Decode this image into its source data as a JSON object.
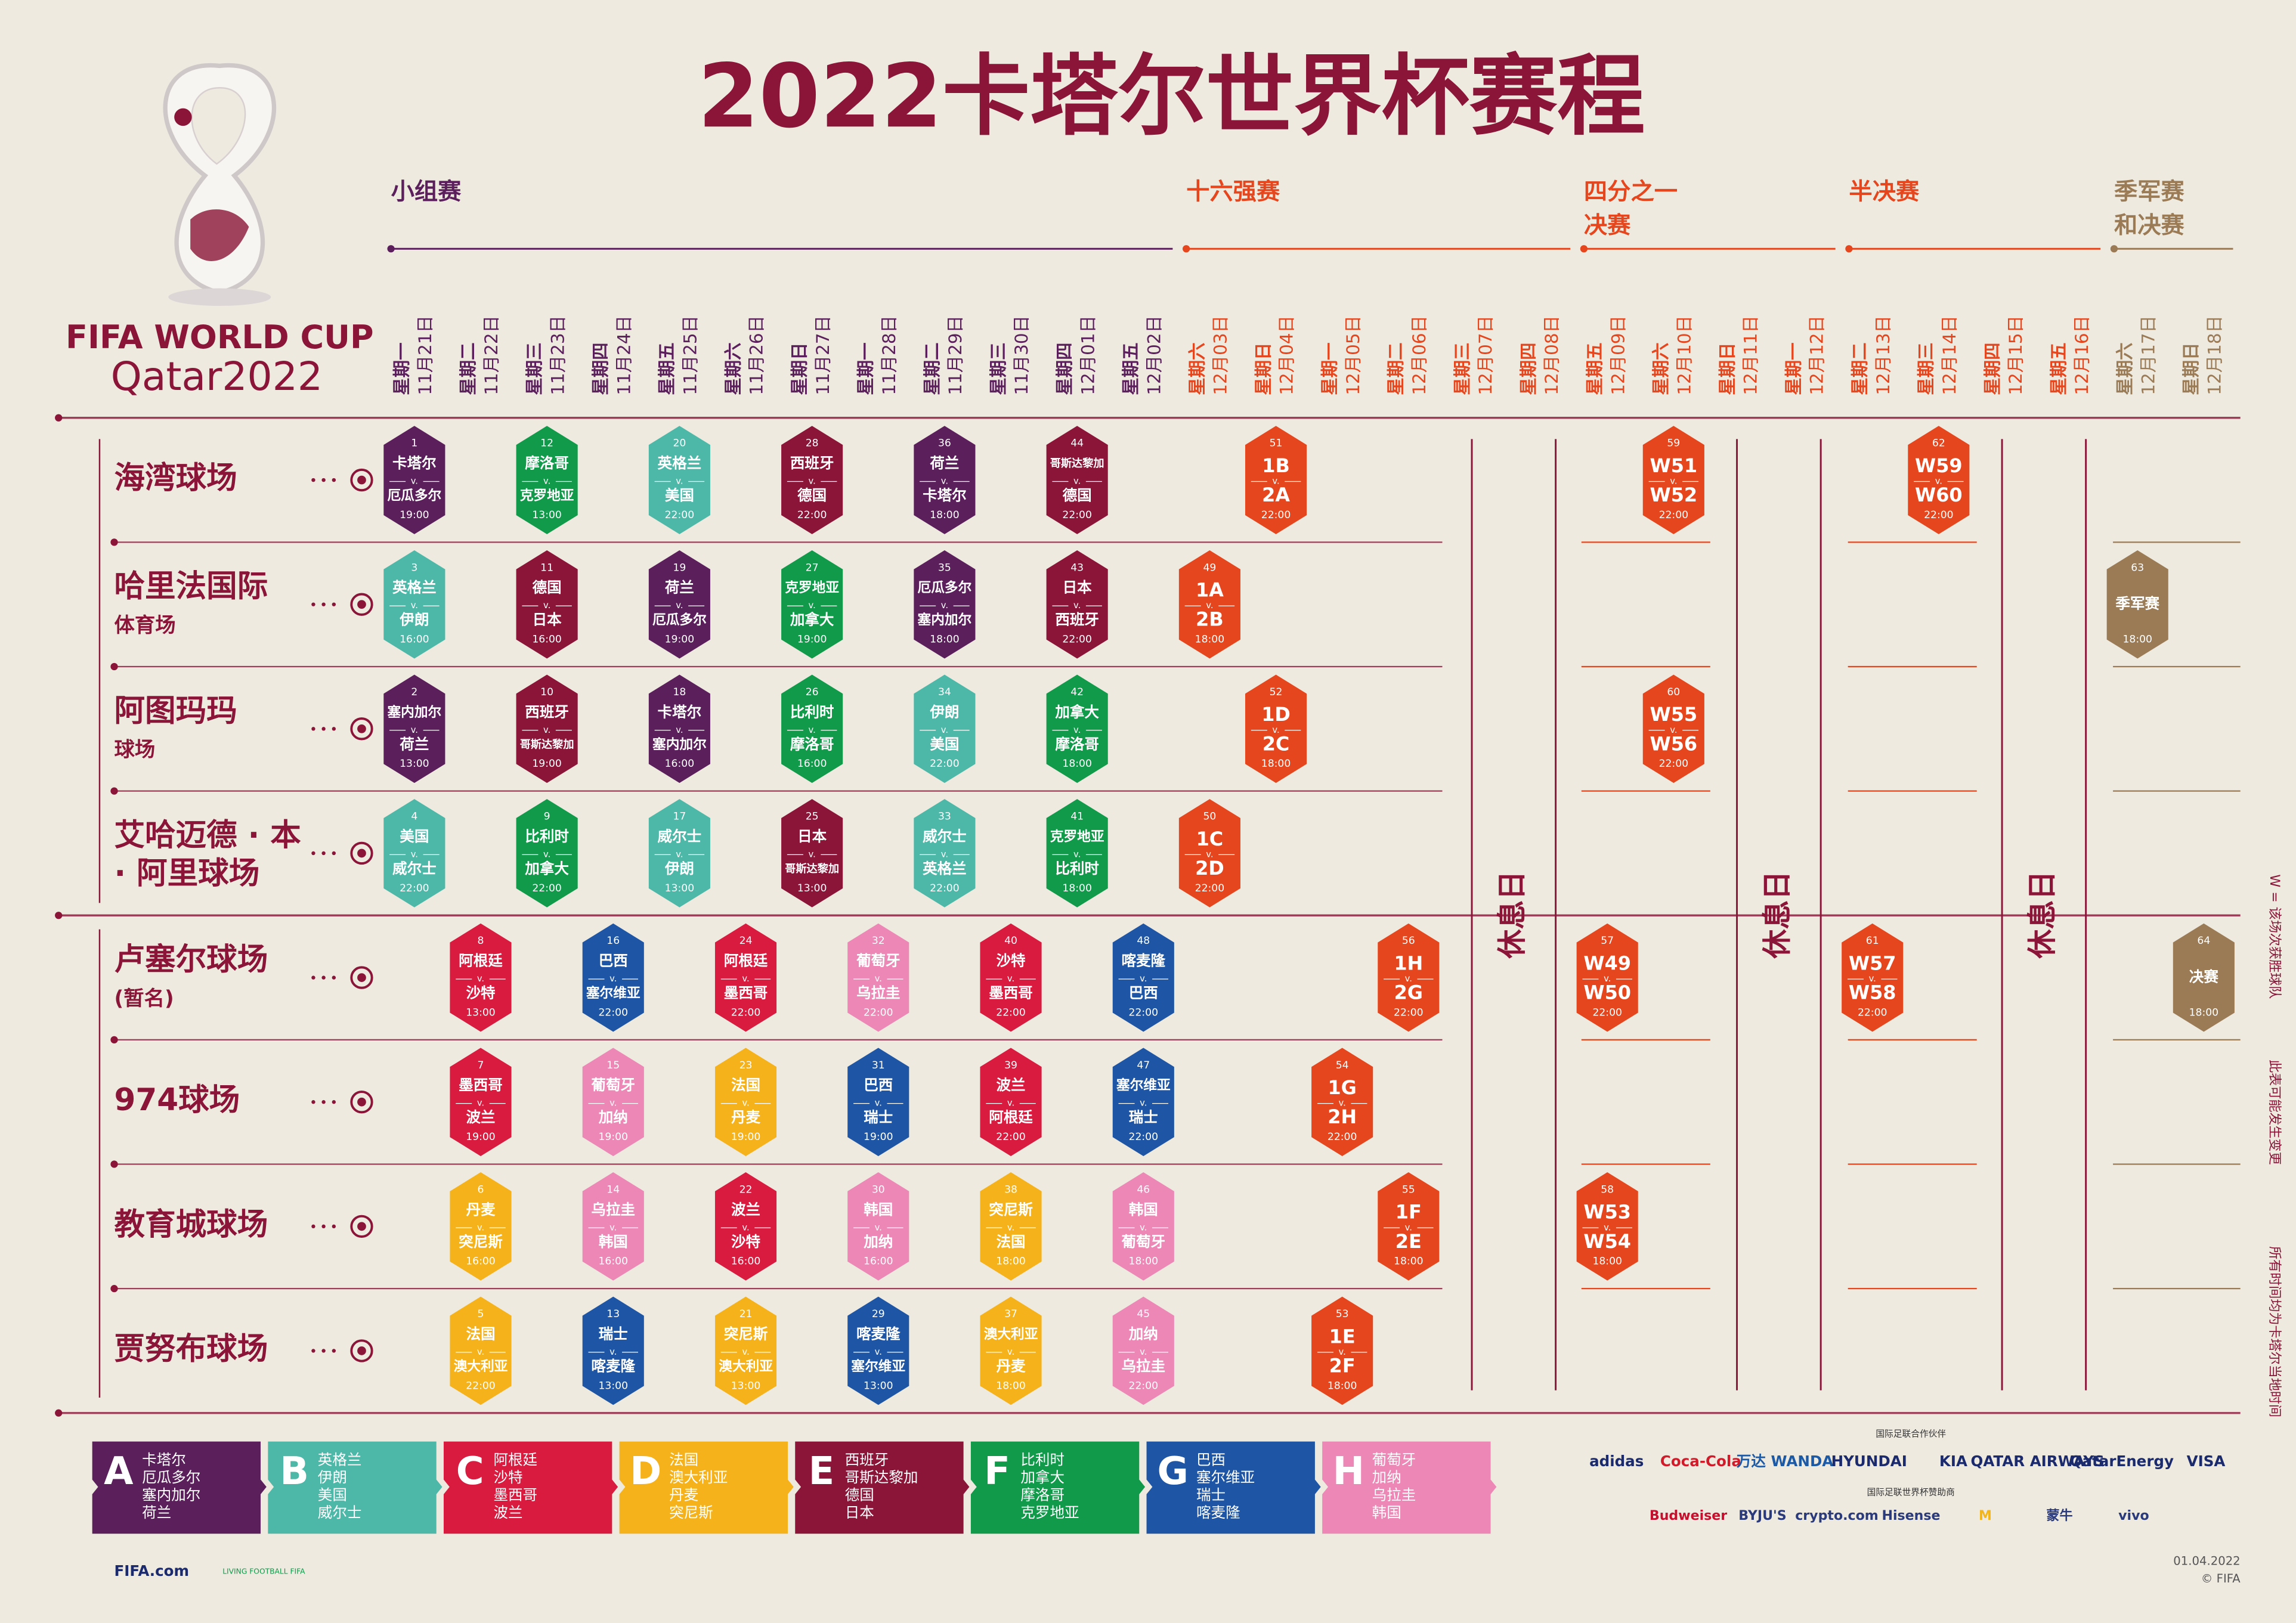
{
  "title": "2022卡塔尔世界杯赛程",
  "logo": {
    "line1": "FIFA WORLD CUP",
    "line2": "Qatar2022"
  },
  "versus": "v.",
  "rest_label": "休息日",
  "stages": [
    {
      "name": [
        "小组赛"
      ],
      "color": "#5b1f5c",
      "dates": [
        {
          "weekday": "星期一",
          "date": "11月21日"
        },
        {
          "weekday": "星期二",
          "date": "11月22日"
        },
        {
          "weekday": "星期三",
          "date": "11月23日"
        },
        {
          "weekday": "星期四",
          "date": "11月24日"
        },
        {
          "weekday": "星期五",
          "date": "11月25日"
        },
        {
          "weekday": "星期六",
          "date": "11月26日"
        },
        {
          "weekday": "星期日",
          "date": "11月27日"
        },
        {
          "weekday": "星期一",
          "date": "11月28日"
        },
        {
          "weekday": "星期二",
          "date": "11月29日"
        },
        {
          "weekday": "星期三",
          "date": "11月30日"
        },
        {
          "weekday": "星期四",
          "date": "12月01日"
        },
        {
          "weekday": "星期五",
          "date": "12月02日"
        }
      ]
    },
    {
      "name": [
        "十六强赛"
      ],
      "color": "#e6461d",
      "dates": [
        {
          "weekday": "星期六",
          "date": "12月03日"
        },
        {
          "weekday": "星期日",
          "date": "12月04日"
        },
        {
          "weekday": "星期一",
          "date": "12月05日"
        },
        {
          "weekday": "星期二",
          "date": "12月06日"
        },
        {
          "weekday": "星期三",
          "date": "12月07日"
        },
        {
          "weekday": "星期四",
          "date": "12月08日"
        }
      ]
    },
    {
      "name": [
        "四分之一",
        "决赛"
      ],
      "color": "#e6461d",
      "dates": [
        {
          "weekday": "星期五",
          "date": "12月09日"
        },
        {
          "weekday": "星期六",
          "date": "12月10日"
        },
        {
          "weekday": "星期日",
          "date": "12月11日"
        },
        {
          "weekday": "星期一",
          "date": "12月12日"
        }
      ]
    },
    {
      "name": [
        "半决赛"
      ],
      "color": "#e6461d",
      "dates": [
        {
          "weekday": "星期二",
          "date": "12月13日"
        },
        {
          "weekday": "星期三",
          "date": "12月14日"
        },
        {
          "weekday": "星期四",
          "date": "12月15日"
        },
        {
          "weekday": "星期五",
          "date": "12月16日"
        }
      ]
    },
    {
      "name": [
        "季军赛",
        "和决赛"
      ],
      "color": "#9b7b55",
      "dates": [
        {
          "weekday": "星期六",
          "date": "12月17日"
        },
        {
          "weekday": "星期日",
          "date": "12月18日"
        }
      ]
    }
  ],
  "stadiums": [
    {
      "name": [
        "海湾球场"
      ],
      "schedule": [
        {
          "no": 1,
          "home": "卡塔尔",
          "away": "厄瓜多尔",
          "time": "19:00",
          "color": "#5b1f5c"
        },
        null,
        {
          "no": 12,
          "home": "摩洛哥",
          "away": "克罗地亚",
          "time": "13:00",
          "color": "#109a4a"
        },
        null,
        {
          "no": 20,
          "home": "英格兰",
          "away": "美国",
          "time": "22:00",
          "color": "#4db8a8"
        },
        null,
        {
          "no": 28,
          "home": "西班牙",
          "away": "德国",
          "time": "22:00",
          "color": "#8b1538"
        },
        null,
        {
          "no": 36,
          "home": "荷兰",
          "away": "卡塔尔",
          "time": "18:00",
          "color": "#5b1f5c"
        },
        null,
        {
          "no": 44,
          "home": "哥斯达黎加",
          "away": "德国",
          "time": "22:00",
          "color": "#8b1538"
        },
        null,
        null,
        {
          "no": 51,
          "home": "1B",
          "away": "2A",
          "time": "22:00",
          "color": "#e6461d"
        },
        null,
        null,
        null,
        null,
        null,
        {
          "no": 59,
          "home": "W51",
          "away": "W52",
          "time": "22:00",
          "color": "#e6461d"
        },
        null,
        null,
        null,
        {
          "no": 62,
          "home": "W59",
          "away": "W60",
          "time": "22:00",
          "color": "#e6461d"
        },
        null,
        null,
        null,
        null
      ]
    },
    {
      "name": [
        "哈里法国际",
        "体育场"
      ],
      "schedule": [
        {
          "no": 3,
          "home": "英格兰",
          "away": "伊朗",
          "time": "16:00",
          "color": "#4db8a8"
        },
        null,
        {
          "no": 11,
          "home": "德国",
          "away": "日本",
          "time": "16:00",
          "color": "#8b1538"
        },
        null,
        {
          "no": 19,
          "home": "荷兰",
          "away": "厄瓜多尔",
          "time": "19:00",
          "color": "#5b1f5c"
        },
        null,
        {
          "no": 27,
          "home": "克罗地亚",
          "away": "加拿大",
          "time": "19:00",
          "color": "#109a4a"
        },
        null,
        {
          "no": 35,
          "home": "厄瓜多尔",
          "away": "塞内加尔",
          "time": "18:00",
          "color": "#5b1f5c"
        },
        null,
        {
          "no": 43,
          "home": "日本",
          "away": "西班牙",
          "time": "22:00",
          "color": "#8b1538"
        },
        null,
        {
          "no": 49,
          "home": "1A",
          "away": "2B",
          "time": "18:00",
          "color": "#e6461d"
        },
        null,
        null,
        null,
        null,
        null,
        null,
        null,
        null,
        null,
        null,
        null,
        null,
        null,
        {
          "no": 63,
          "name": "季军赛",
          "time": "18:00",
          "color": "#9b7b55"
        },
        null
      ]
    },
    {
      "name": [
        "阿图玛玛",
        "球场"
      ],
      "schedule": [
        {
          "no": 2,
          "home": "塞内加尔",
          "away": "荷兰",
          "time": "13:00",
          "color": "#5b1f5c"
        },
        null,
        {
          "no": 10,
          "home": "西班牙",
          "away": "哥斯达黎加",
          "time": "19:00",
          "color": "#8b1538"
        },
        null,
        {
          "no": 18,
          "home": "卡塔尔",
          "away": "塞内加尔",
          "time": "16:00",
          "color": "#5b1f5c"
        },
        null,
        {
          "no": 26,
          "home": "比利时",
          "away": "摩洛哥",
          "time": "16:00",
          "color": "#109a4a"
        },
        null,
        {
          "no": 34,
          "home": "伊朗",
          "away": "美国",
          "time": "22:00",
          "color": "#4db8a8"
        },
        null,
        {
          "no": 42,
          "home": "加拿大",
          "away": "摩洛哥",
          "time": "18:00",
          "color": "#109a4a"
        },
        null,
        null,
        {
          "no": 52,
          "home": "1D",
          "away": "2C",
          "time": "18:00",
          "color": "#e6461d"
        },
        null,
        null,
        null,
        null,
        null,
        {
          "no": 60,
          "home": "W55",
          "away": "W56",
          "time": "22:00",
          "color": "#e6461d"
        },
        null,
        null,
        null,
        null,
        null,
        null,
        null,
        null
      ]
    },
    {
      "name": [
        "艾哈迈德 · 本",
        "· 阿里球场"
      ],
      "schedule": [
        {
          "no": 4,
          "home": "美国",
          "away": "威尔士",
          "time": "22:00",
          "color": "#4db8a8"
        },
        null,
        {
          "no": 9,
          "home": "比利时",
          "away": "加拿大",
          "time": "22:00",
          "color": "#109a4a"
        },
        null,
        {
          "no": 17,
          "home": "威尔士",
          "away": "伊朗",
          "time": "13:00",
          "color": "#4db8a8"
        },
        null,
        {
          "no": 25,
          "home": "日本",
          "away": "哥斯达黎加",
          "time": "13:00",
          "color": "#8b1538"
        },
        null,
        {
          "no": 33,
          "home": "威尔士",
          "away": "英格兰",
          "time": "22:00",
          "color": "#4db8a8"
        },
        null,
        {
          "no": 41,
          "home": "克罗地亚",
          "away": "比利时",
          "time": "18:00",
          "color": "#109a4a"
        },
        null,
        {
          "no": 50,
          "home": "1C",
          "away": "2D",
          "time": "22:00",
          "color": "#e6461d"
        },
        null,
        null,
        null,
        null,
        null,
        null,
        null,
        null,
        null,
        null,
        null,
        null,
        null,
        null,
        null
      ]
    },
    {
      "name": [
        "卢塞尔球场",
        "(暂名)"
      ],
      "schedule": [
        null,
        {
          "no": 8,
          "home": "阿根廷",
          "away": "沙特",
          "time": "13:00",
          "color": "#d81b3f"
        },
        null,
        {
          "no": 16,
          "home": "巴西",
          "away": "塞尔维亚",
          "time": "22:00",
          "color": "#1e56a5"
        },
        null,
        {
          "no": 24,
          "home": "阿根廷",
          "away": "墨西哥",
          "time": "22:00",
          "color": "#d81b3f"
        },
        null,
        {
          "no": 32,
          "home": "葡萄牙",
          "away": "乌拉圭",
          "time": "22:00",
          "color": "#ec87b6"
        },
        null,
        {
          "no": 40,
          "home": "沙特",
          "away": "墨西哥",
          "time": "22:00",
          "color": "#d81b3f"
        },
        null,
        {
          "no": 48,
          "home": "喀麦隆",
          "away": "巴西",
          "time": "22:00",
          "color": "#1e56a5"
        },
        null,
        null,
        null,
        {
          "no": 56,
          "home": "1H",
          "away": "2G",
          "time": "22:00",
          "color": "#e6461d"
        },
        null,
        null,
        {
          "no": 57,
          "home": "W49",
          "away": "W50",
          "time": "22:00",
          "color": "#e6461d"
        },
        null,
        null,
        null,
        {
          "no": 61,
          "home": "W57",
          "away": "W58",
          "time": "22:00",
          "color": "#e6461d"
        },
        null,
        null,
        null,
        null,
        {
          "no": 64,
          "name": "决赛",
          "time": "18:00",
          "color": "#9b7b55"
        }
      ]
    },
    {
      "name": [
        "974球场"
      ],
      "schedule": [
        null,
        {
          "no": 7,
          "home": "墨西哥",
          "away": "波兰",
          "time": "19:00",
          "color": "#d81b3f"
        },
        null,
        {
          "no": 15,
          "home": "葡萄牙",
          "away": "加纳",
          "time": "19:00",
          "color": "#ec87b6"
        },
        null,
        {
          "no": 23,
          "home": "法国",
          "away": "丹麦",
          "time": "19:00",
          "color": "#f5b21b"
        },
        null,
        {
          "no": 31,
          "home": "巴西",
          "away": "瑞士",
          "time": "19:00",
          "color": "#1e56a5"
        },
        null,
        {
          "no": 39,
          "home": "波兰",
          "away": "阿根廷",
          "time": "22:00",
          "color": "#d81b3f"
        },
        null,
        {
          "no": 47,
          "home": "塞尔维亚",
          "away": "瑞士",
          "time": "22:00",
          "color": "#1e56a5"
        },
        null,
        null,
        {
          "no": 54,
          "home": "1G",
          "away": "2H",
          "time": "22:00",
          "color": "#e6461d"
        },
        null,
        null,
        null,
        null,
        null,
        null,
        null,
        null,
        null,
        null,
        null,
        null,
        null
      ]
    },
    {
      "name": [
        "教育城球场"
      ],
      "schedule": [
        null,
        {
          "no": 6,
          "home": "丹麦",
          "away": "突尼斯",
          "time": "16:00",
          "color": "#f5b21b"
        },
        null,
        {
          "no": 14,
          "home": "乌拉圭",
          "away": "韩国",
          "time": "16:00",
          "color": "#ec87b6"
        },
        null,
        {
          "no": 22,
          "home": "波兰",
          "away": "沙特",
          "time": "16:00",
          "color": "#d81b3f"
        },
        null,
        {
          "no": 30,
          "home": "韩国",
          "away": "加纳",
          "time": "16:00",
          "color": "#ec87b6"
        },
        null,
        {
          "no": 38,
          "home": "突尼斯",
          "away": "法国",
          "time": "18:00",
          "color": "#f5b21b"
        },
        null,
        {
          "no": 46,
          "home": "韩国",
          "away": "葡萄牙",
          "time": "18:00",
          "color": "#ec87b6"
        },
        null,
        null,
        null,
        {
          "no": 55,
          "home": "1F",
          "away": "2E",
          "time": "18:00",
          "color": "#e6461d"
        },
        null,
        null,
        {
          "no": 58,
          "home": "W53",
          "away": "W54",
          "time": "18:00",
          "color": "#e6461d"
        },
        null,
        null,
        null,
        null,
        null,
        null,
        null,
        null,
        null
      ]
    },
    {
      "name": [
        "贾努布球场"
      ],
      "schedule": [
        null,
        {
          "no": 5,
          "home": "法国",
          "away": "澳大利亚",
          "time": "22:00",
          "color": "#f5b21b"
        },
        null,
        {
          "no": 13,
          "home": "瑞士",
          "away": "喀麦隆",
          "time": "13:00",
          "color": "#1e56a5"
        },
        null,
        {
          "no": 21,
          "home": "突尼斯",
          "away": "澳大利亚",
          "time": "13:00",
          "color": "#f5b21b"
        },
        null,
        {
          "no": 29,
          "home": "喀麦隆",
          "away": "塞尔维亚",
          "time": "13:00",
          "color": "#1e56a5"
        },
        null,
        {
          "no": 37,
          "home": "澳大利亚",
          "away": "丹麦",
          "time": "18:00",
          "color": "#f5b21b"
        },
        null,
        {
          "no": 45,
          "home": "加纳",
          "away": "乌拉圭",
          "time": "22:00",
          "color": "#ec87b6"
        },
        null,
        null,
        {
          "no": 53,
          "home": "1E",
          "away": "2F",
          "time": "18:00",
          "color": "#e6461d"
        },
        null,
        null,
        null,
        null,
        null,
        null,
        null,
        null,
        null,
        null,
        null,
        null,
        null
      ]
    }
  ],
  "groups": [
    {
      "letter": "A",
      "color": "#5b1f5c",
      "teams": [
        "卡塔尔",
        "厄瓜多尔",
        "塞内加尔",
        "荷兰"
      ]
    },
    {
      "letter": "B",
      "color": "#4db8a8",
      "teams": [
        "英格兰",
        "伊朗",
        "美国",
        "威尔士"
      ]
    },
    {
      "letter": "C",
      "color": "#d81b3f",
      "teams": [
        "阿根廷",
        "沙特",
        "墨西哥",
        "波兰"
      ]
    },
    {
      "letter": "D",
      "color": "#f5b21b",
      "teams": [
        "法国",
        "澳大利亚",
        "丹麦",
        "突尼斯"
      ]
    },
    {
      "letter": "E",
      "color": "#8b1538",
      "teams": [
        "西班牙",
        "哥斯达黎加",
        "德国",
        "日本"
      ]
    },
    {
      "letter": "F",
      "color": "#109a4a",
      "teams": [
        "比利时",
        "加拿大",
        "摩洛哥",
        "克罗地亚"
      ]
    },
    {
      "letter": "G",
      "color": "#1e56a5",
      "teams": [
        "巴西",
        "塞尔维亚",
        "瑞士",
        "喀麦隆"
      ]
    },
    {
      "letter": "H",
      "color": "#ec87b6",
      "teams": [
        "葡萄牙",
        "加纳",
        "乌拉圭",
        "韩国"
      ]
    }
  ],
  "notes": [
    "W = 该场次获胜球队",
    "此表可能发生变更",
    "所有时间均为卡塔尔当地时间"
  ],
  "partners_title": "国际足联合作伙伴",
  "partners": [
    "adidas",
    "Coca-Cola",
    "万达 WANDA",
    "HYUNDAI",
    "KIA",
    "QATAR AIRWAYS",
    "QatarEnergy",
    "VISA"
  ],
  "sponsors_title": "国际足联世界杯赞助商",
  "sponsors": [
    "Budweiser",
    "BYJU'S",
    "crypto.com",
    "Hisense",
    "M",
    "蒙牛",
    "vivo"
  ],
  "footer": {
    "site": "FIFA.com",
    "tagline": "LIVING FOOTBALL FIFA",
    "date": "01.04.2022",
    "copyright": "© FIFA"
  }
}
